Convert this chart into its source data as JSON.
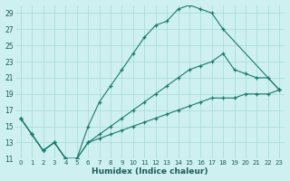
{
  "xlabel": "Humidex (Indice chaleur)",
  "bg_color": "#cff0f0",
  "line_color": "#1a7a6e",
  "grid_color": "#aadddd",
  "xlim": [
    -0.5,
    23.5
  ],
  "ylim": [
    11,
    30
  ],
  "yticks": [
    11,
    13,
    15,
    17,
    19,
    21,
    23,
    25,
    27,
    29
  ],
  "xticks": [
    0,
    1,
    2,
    3,
    4,
    5,
    6,
    7,
    8,
    9,
    10,
    11,
    12,
    13,
    14,
    15,
    16,
    17,
    18,
    19,
    20,
    21,
    22,
    23
  ],
  "line1_x": [
    0,
    1,
    2,
    3,
    4,
    5,
    6,
    7,
    8,
    9,
    10,
    11,
    12,
    13,
    14,
    15,
    16,
    17,
    18,
    23
  ],
  "line1_y": [
    16,
    14,
    12,
    13,
    11,
    11,
    15,
    18,
    20,
    22,
    24,
    26,
    27.5,
    28,
    29.5,
    30,
    29.5,
    29,
    27,
    19.5
  ],
  "line2_x": [
    0,
    1,
    2,
    3,
    4,
    5,
    6,
    7,
    8,
    9,
    10,
    11,
    12,
    13,
    14,
    15,
    16,
    17,
    18,
    19,
    20,
    21,
    22,
    23
  ],
  "line2_y": [
    16,
    14,
    12,
    13,
    11,
    11,
    13,
    14,
    15,
    16,
    17,
    18,
    19,
    20,
    21,
    22,
    22.5,
    23,
    24,
    22,
    21.5,
    21,
    21,
    19.5
  ],
  "line3_x": [
    0,
    1,
    2,
    3,
    4,
    5,
    6,
    7,
    8,
    9,
    10,
    11,
    12,
    13,
    14,
    15,
    16,
    17,
    18,
    19,
    20,
    21,
    22,
    23
  ],
  "line3_y": [
    16,
    14,
    12,
    13,
    11,
    11,
    13,
    13.5,
    14,
    14.5,
    15,
    15.5,
    16,
    16.5,
    17,
    17.5,
    18,
    18.5,
    18.5,
    18.5,
    19,
    19,
    19,
    19.5
  ]
}
